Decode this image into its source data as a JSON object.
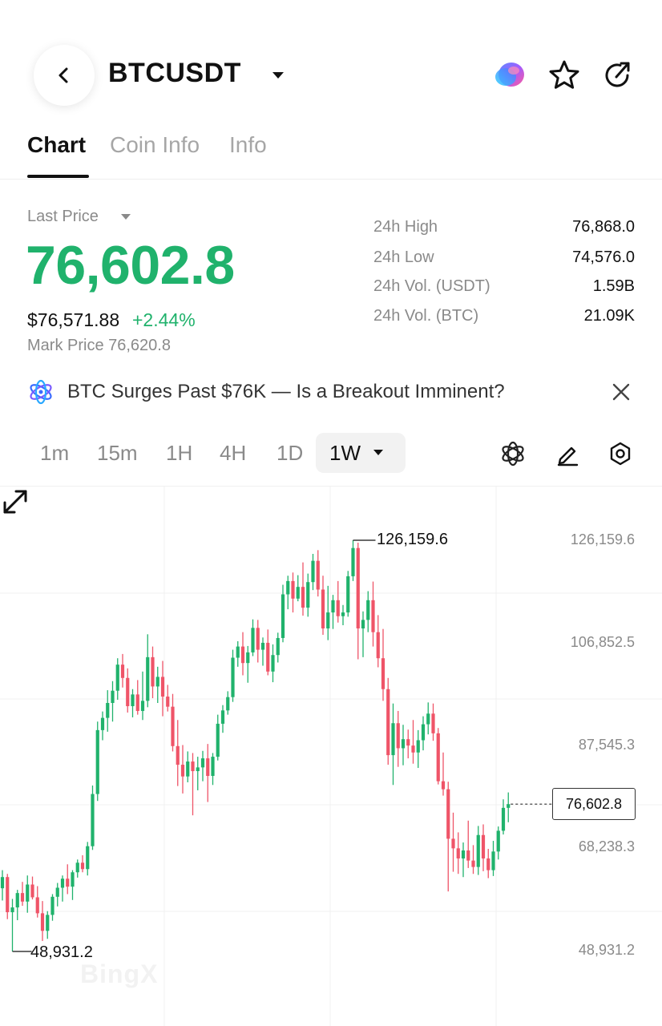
{
  "header": {
    "symbol": "BTCUSDT"
  },
  "tabs": [
    {
      "label": "Chart",
      "active": true
    },
    {
      "label": "Coin Info",
      "active": false
    },
    {
      "label": "Info",
      "active": false
    }
  ],
  "price": {
    "last_label": "Last Price",
    "last_price": "76,602.8",
    "usd_price": "$76,571.88",
    "change": "+2.44%",
    "mark_price": "Mark Price 76,620.8"
  },
  "stats": [
    {
      "label": "24h High",
      "value": "76,868.0"
    },
    {
      "label": "24h Low",
      "value": "74,576.0"
    },
    {
      "label": "24h Vol. (USDT)",
      "value": "1.59B"
    },
    {
      "label": "24h Vol. (BTC)",
      "value": "21.09K"
    }
  ],
  "news": {
    "headline": "BTC Surges Past $76K — Is a Breakout Imminent?"
  },
  "intervals": [
    "1m",
    "15m",
    "1H",
    "4H",
    "1D",
    "1W"
  ],
  "selected_interval": "1W",
  "colors": {
    "up": "#20b26c",
    "down": "#ef5468",
    "accent": "#20b26c"
  },
  "icons": {
    "back": "chevron-left-icon",
    "symbol_dropdown": "caret-down-icon",
    "ai": "ai-orb-icon",
    "favorite": "star-icon",
    "share": "share-icon",
    "news": "atom-icon",
    "close": "close-icon",
    "indicator": "atom-icon",
    "draw": "pencil-icon",
    "settings": "hexagon-settings-icon",
    "expand": "expand-icon"
  },
  "chart_data": {
    "type": "candlestick",
    "interval": "1W",
    "y_ticks": [
      "126,159.6",
      "106,852.5",
      "87,545.3",
      "68,238.3",
      "48,931.2"
    ],
    "ylim": [
      48931.2,
      126159.6
    ],
    "high_marker": "126,159.6",
    "low_marker": "48,931.2",
    "current_price": "76,602.8",
    "current_value": 76602.8,
    "grid": true,
    "watermark": "BingX",
    "candles": [
      [
        60800,
        64200,
        58500,
        62900
      ],
      [
        62900,
        63500,
        55000,
        56300
      ],
      [
        56300,
        58800,
        48931.2,
        57200
      ],
      [
        57200,
        60500,
        54800,
        59900
      ],
      [
        59900,
        62000,
        57500,
        58300
      ],
      [
        58300,
        63200,
        56200,
        61500
      ],
      [
        61500,
        63000,
        58700,
        59100
      ],
      [
        59100,
        61200,
        55300,
        56100
      ],
      [
        56100,
        58400,
        50900,
        52800
      ],
      [
        52800,
        56500,
        51300,
        55800
      ],
      [
        55800,
        59700,
        54700,
        59200
      ],
      [
        59200,
        61800,
        57400,
        60900
      ],
      [
        60900,
        63200,
        58300,
        62600
      ],
      [
        62600,
        65300,
        59700,
        61100
      ],
      [
        61100,
        64200,
        58600,
        63800
      ],
      [
        63800,
        66200,
        62800,
        65600
      ],
      [
        65600,
        67000,
        63800,
        64400
      ],
      [
        64400,
        69500,
        63200,
        68700
      ],
      [
        68700,
        80100,
        68000,
        78500
      ],
      [
        78500,
        92100,
        77200,
        90500
      ],
      [
        90500,
        94000,
        88600,
        92800
      ],
      [
        92800,
        98000,
        90200,
        95600
      ],
      [
        95600,
        99700,
        92100,
        97900
      ],
      [
        97900,
        104000,
        96200,
        102800
      ],
      [
        102800,
        104800,
        98500,
        100300
      ],
      [
        100300,
        102100,
        93800,
        95000
      ],
      [
        95000,
        98200,
        92900,
        97200
      ],
      [
        97200,
        99900,
        93400,
        94100
      ],
      [
        94100,
        101500,
        92400,
        96000
      ],
      [
        96000,
        108500,
        94800,
        104200
      ],
      [
        104200,
        106200,
        96500,
        98700
      ],
      [
        98700,
        102400,
        95600,
        100500
      ],
      [
        100500,
        103500,
        93100,
        96800
      ],
      [
        96800,
        99000,
        94000,
        94900
      ],
      [
        94900,
        97300,
        86500,
        87500
      ],
      [
        87500,
        92400,
        80000,
        84000
      ],
      [
        84000,
        87700,
        78600,
        81800
      ],
      [
        81800,
        86500,
        80700,
        84600
      ],
      [
        84600,
        86200,
        74500,
        82800
      ],
      [
        82800,
        85500,
        79200,
        83500
      ],
      [
        83500,
        86600,
        80900,
        85200
      ],
      [
        85200,
        87900,
        77000,
        81900
      ],
      [
        81900,
        86200,
        80200,
        85500
      ],
      [
        85500,
        93400,
        84800,
        91700
      ],
      [
        91700,
        95200,
        90000,
        94200
      ],
      [
        94200,
        97800,
        93400,
        96700
      ],
      [
        96700,
        105600,
        95800,
        104100
      ],
      [
        104100,
        107200,
        102400,
        106200
      ],
      [
        106200,
        108900,
        100800,
        103100
      ],
      [
        103100,
        106300,
        99400,
        105100
      ],
      [
        105100,
        111300,
        104400,
        109700
      ],
      [
        109700,
        111200,
        103200,
        105600
      ],
      [
        105600,
        107900,
        102600,
        106900
      ],
      [
        106900,
        109400,
        100800,
        101500
      ],
      [
        101500,
        106600,
        99500,
        104600
      ],
      [
        104600,
        108800,
        103200,
        107800
      ],
      [
        107800,
        117800,
        107000,
        116000
      ],
      [
        116000,
        119500,
        113200,
        118500
      ],
      [
        118500,
        120100,
        112600,
        115200
      ],
      [
        115200,
        119600,
        114700,
        117400
      ],
      [
        117400,
        122000,
        112000,
        113500
      ],
      [
        113500,
        119900,
        111800,
        118300
      ],
      [
        118300,
        123600,
        116800,
        122300
      ],
      [
        122300,
        124300,
        115600,
        116900
      ],
      [
        116900,
        119500,
        108400,
        109600
      ],
      [
        109600,
        117600,
        107400,
        112600
      ],
      [
        112600,
        115900,
        109500,
        114900
      ],
      [
        114900,
        118500,
        110700,
        111900
      ],
      [
        111900,
        114000,
        110200,
        112600
      ],
      [
        112600,
        120400,
        111800,
        119400
      ],
      [
        119400,
        126159.6,
        118500,
        124700
      ],
      [
        124700,
        125700,
        103800,
        109600
      ],
      [
        109600,
        112800,
        104200,
        111200
      ],
      [
        111200,
        116600,
        108900,
        114900
      ],
      [
        114900,
        118400,
        106200,
        108900
      ],
      [
        108900,
        112100,
        102300,
        104000
      ],
      [
        104000,
        109500,
        96000,
        98200
      ],
      [
        98200,
        100300,
        84000,
        85800
      ],
      [
        85800,
        95500,
        80200,
        91800
      ],
      [
        91800,
        94100,
        83600,
        87100
      ],
      [
        87100,
        91500,
        83900,
        88800
      ],
      [
        88800,
        90600,
        85200,
        87600
      ],
      [
        87600,
        92400,
        84200,
        86300
      ],
      [
        86300,
        90500,
        83400,
        88600
      ],
      [
        88600,
        93100,
        86700,
        91600
      ],
      [
        91600,
        95700,
        89700,
        93600
      ],
      [
        93600,
        95500,
        88500,
        89900
      ],
      [
        89900,
        90900,
        80300,
        80900
      ],
      [
        80900,
        86300,
        78200,
        79400
      ],
      [
        79400,
        80800,
        60200,
        70100
      ],
      [
        70100,
        75000,
        63900,
        68300
      ],
      [
        68300,
        71300,
        63500,
        66400
      ],
      [
        66400,
        69400,
        62900,
        67900
      ],
      [
        67900,
        73500,
        64600,
        66000
      ],
      [
        66000,
        68900,
        63500,
        64800
      ],
      [
        64800,
        72500,
        63300,
        70800
      ],
      [
        70800,
        72800,
        64000,
        66400
      ],
      [
        66400,
        68200,
        62700,
        64200
      ],
      [
        64200,
        69700,
        63100,
        67700
      ],
      [
        67700,
        72400,
        66200,
        71600
      ],
      [
        71600,
        77500,
        70900,
        75900
      ],
      [
        75900,
        78800,
        73200,
        76602.8
      ]
    ]
  }
}
